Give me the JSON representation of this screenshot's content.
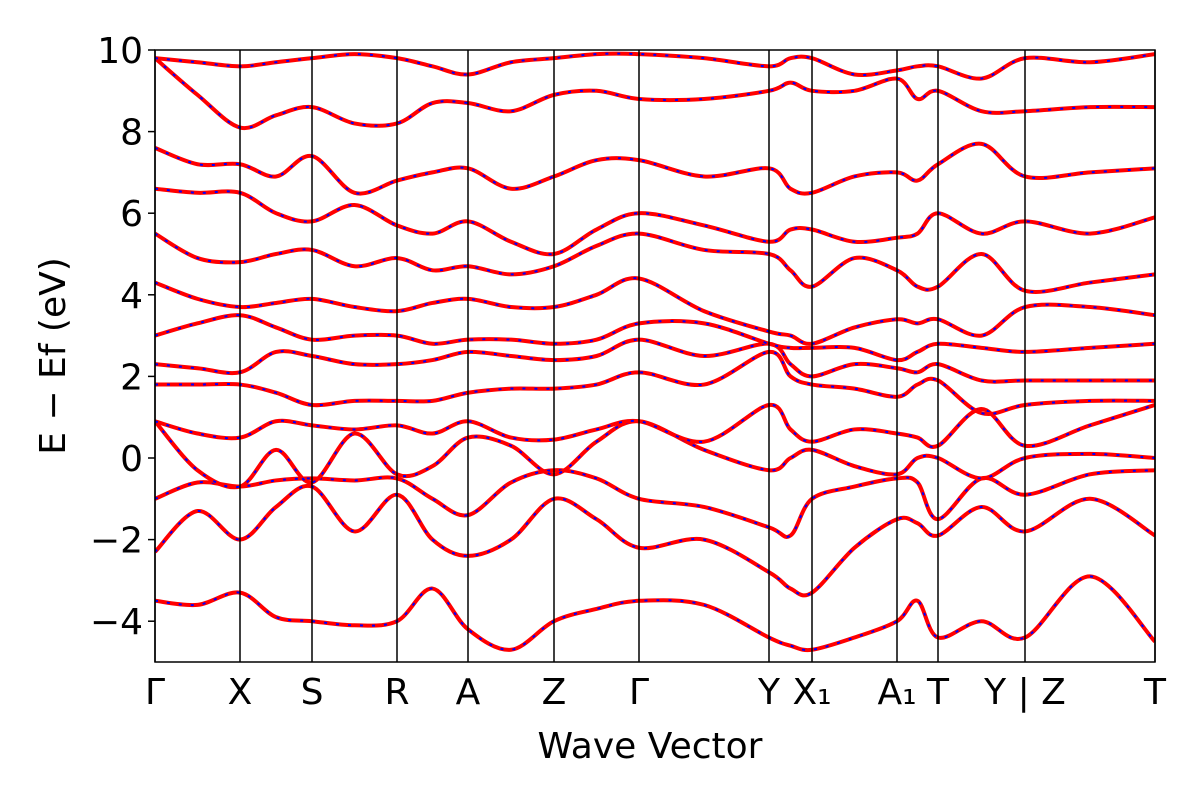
{
  "chart_data": {
    "type": "line",
    "xlabel": "Wave Vector",
    "ylabel": "E − Ef (eV)",
    "xlim": [
      0,
      10
    ],
    "ylim": [
      -5,
      10
    ],
    "yticks": [
      {
        "value": -4,
        "label": "−4"
      },
      {
        "value": -2,
        "label": "−2"
      },
      0,
      2,
      4,
      6,
      8,
      10
    ],
    "xticks": [
      {
        "value": 0,
        "label": "Γ"
      },
      {
        "value": 0.85,
        "label": "X"
      },
      {
        "value": 1.57,
        "label": "S"
      },
      {
        "value": 2.42,
        "label": "R"
      },
      {
        "value": 3.13,
        "label": "A"
      },
      {
        "value": 3.99,
        "label": "Z"
      },
      {
        "value": 4.84,
        "label": "Γ"
      },
      {
        "value": 6.14,
        "label": "Y"
      },
      {
        "value": 6.57,
        "label": "X₁"
      },
      {
        "value": 7.42,
        "label": "A₁"
      },
      {
        "value": 7.83,
        "label": "T"
      },
      {
        "value": 8.7,
        "label": "Y | Z"
      },
      {
        "value": 10,
        "label": "T"
      }
    ],
    "vlines": true,
    "overlay_color": "#0000ff",
    "x": [
      0,
      0.425,
      0.85,
      1.21,
      1.57,
      1.995,
      2.42,
      2.775,
      3.13,
      3.56,
      3.99,
      4.415,
      4.84,
      5.49,
      6.14,
      6.355,
      6.57,
      6.995,
      7.42,
      7.625,
      7.83,
      8.265,
      8.7,
      9.35,
      10
    ],
    "series": [
      {
        "color": "#ff0000",
        "values": [
          -3.5,
          -3.6,
          -3.3,
          -3.9,
          -4.0,
          -4.1,
          -4.0,
          -3.2,
          -4.2,
          -4.7,
          -4.0,
          -3.7,
          -3.5,
          -3.6,
          -4.4,
          -4.6,
          -4.7,
          -4.4,
          -4.0,
          -3.5,
          -4.4,
          -4.0,
          -4.4,
          -2.9,
          -4.5
        ]
      },
      {
        "color": "#ff0000",
        "values": [
          -2.3,
          -1.3,
          -2.0,
          -1.2,
          -0.7,
          -1.8,
          -0.9,
          -2.0,
          -2.4,
          -2.0,
          -1.0,
          -1.5,
          -2.2,
          -2.0,
          -2.8,
          -3.2,
          -3.3,
          -2.2,
          -1.5,
          -1.6,
          -1.9,
          -1.2,
          -1.8,
          -1.0,
          -1.9
        ]
      },
      {
        "color": "#ff0000",
        "values": [
          -1.0,
          -0.6,
          -0.7,
          -0.55,
          -0.5,
          -0.55,
          -0.5,
          -1.0,
          -1.4,
          -0.6,
          -0.3,
          -0.5,
          -1.0,
          -1.2,
          -1.7,
          -1.9,
          -1.0,
          -0.7,
          -0.5,
          -0.6,
          -1.5,
          -0.5,
          -0.9,
          -0.4,
          -0.3
        ]
      },
      {
        "color": "#ff0000",
        "values": [
          0.9,
          -0.3,
          -0.7,
          0.2,
          -0.6,
          0.6,
          -0.4,
          -0.2,
          0.5,
          0.3,
          -0.4,
          0.4,
          0.9,
          0.2,
          -0.3,
          0,
          0.2,
          -0.2,
          -0.4,
          0,
          0,
          -0.5,
          0,
          0.1,
          0
        ]
      },
      {
        "color": "#ff0000",
        "values": [
          0.9,
          0.6,
          0.5,
          0.9,
          0.8,
          0.7,
          0.8,
          0.6,
          0.9,
          0.5,
          0.45,
          0.7,
          0.9,
          0.4,
          1.3,
          0.7,
          0.4,
          0.7,
          0.6,
          0.5,
          0.3,
          1.2,
          0.3,
          0.8,
          1.3
        ]
      },
      {
        "color": "#ff0000",
        "values": [
          1.8,
          1.8,
          1.8,
          1.6,
          1.3,
          1.4,
          1.4,
          1.4,
          1.6,
          1.7,
          1.7,
          1.8,
          2.1,
          1.8,
          2.6,
          2.0,
          1.8,
          1.7,
          1.5,
          1.8,
          1.9,
          1.1,
          1.3,
          1.4,
          1.4
        ]
      },
      {
        "color": "#ff0000",
        "values": [
          2.3,
          2.2,
          2.1,
          2.6,
          2.5,
          2.3,
          2.3,
          2.4,
          2.6,
          2.5,
          2.4,
          2.5,
          2.9,
          2.5,
          2.8,
          2.3,
          2.0,
          2.3,
          2.2,
          2.1,
          2.3,
          1.9,
          1.9,
          1.9,
          1.9
        ]
      },
      {
        "color": "#ff0000",
        "values": [
          3.0,
          3.3,
          3.5,
          3.2,
          2.9,
          3.0,
          3.0,
          2.8,
          2.9,
          2.9,
          2.8,
          2.9,
          3.3,
          3.3,
          2.8,
          2.7,
          2.7,
          2.7,
          2.4,
          2.6,
          2.8,
          2.7,
          2.6,
          2.7,
          2.8
        ]
      },
      {
        "color": "#ff0000",
        "values": [
          4.3,
          3.9,
          3.7,
          3.8,
          3.9,
          3.7,
          3.6,
          3.8,
          3.9,
          3.7,
          3.7,
          4.0,
          4.4,
          3.6,
          3.1,
          3.0,
          2.8,
          3.2,
          3.4,
          3.3,
          3.4,
          3.0,
          3.7,
          3.7,
          3.5
        ]
      },
      {
        "color": "#ff0000",
        "values": [
          5.5,
          4.9,
          4.8,
          5.0,
          5.1,
          4.7,
          4.9,
          4.6,
          4.7,
          4.5,
          4.7,
          5.2,
          5.5,
          5.1,
          5.0,
          4.6,
          4.2,
          4.9,
          4.6,
          4.2,
          4.2,
          5.0,
          4.1,
          4.3,
          4.5
        ]
      },
      {
        "color": "#ff0000",
        "values": [
          6.6,
          6.5,
          6.5,
          6.0,
          5.8,
          6.2,
          5.7,
          5.5,
          5.8,
          5.3,
          5.0,
          5.6,
          6.0,
          5.7,
          5.3,
          5.6,
          5.6,
          5.3,
          5.4,
          5.5,
          6.0,
          5.5,
          5.8,
          5.5,
          5.9
        ]
      },
      {
        "color": "#ff0000",
        "values": [
          7.6,
          7.2,
          7.2,
          6.9,
          7.4,
          6.5,
          6.8,
          7.0,
          7.1,
          6.6,
          6.9,
          7.3,
          7.3,
          6.9,
          7.1,
          6.6,
          6.5,
          6.9,
          7.0,
          6.8,
          7.2,
          7.7,
          6.9,
          7.0,
          7.1
        ]
      },
      {
        "color": "#ff0000",
        "values": [
          9.8,
          8.9,
          8.1,
          8.4,
          8.6,
          8.2,
          8.2,
          8.7,
          8.7,
          8.5,
          8.9,
          9.0,
          8.8,
          8.8,
          9.0,
          9.2,
          9.0,
          9.0,
          9.3,
          8.8,
          9.0,
          8.5,
          8.5,
          8.6,
          8.6
        ]
      },
      {
        "color": "#ff0000",
        "values": [
          9.8,
          9.7,
          9.6,
          9.7,
          9.8,
          9.9,
          9.8,
          9.6,
          9.4,
          9.7,
          9.8,
          9.9,
          9.9,
          9.8,
          9.6,
          9.8,
          9.8,
          9.4,
          9.5,
          9.6,
          9.6,
          9.3,
          9.8,
          9.7,
          9.9
        ]
      }
    ]
  }
}
